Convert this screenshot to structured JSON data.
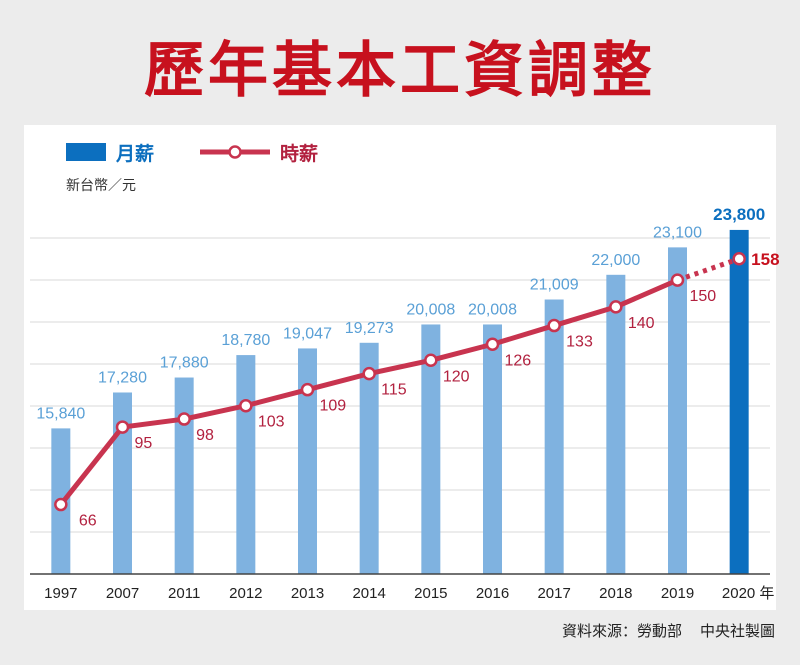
{
  "title": "歷年基本工資調整",
  "chart_data": {
    "type": "bar",
    "categories": [
      "1997",
      "2007",
      "2011",
      "2012",
      "2013",
      "2014",
      "2015",
      "2016",
      "2017",
      "2018",
      "2019",
      "2020"
    ],
    "x_unit": "年",
    "ylabel": "新台幣／元",
    "legend": {
      "bar": "月薪",
      "line": "時薪",
      "placement": "top-left"
    },
    "series": [
      {
        "name": "月薪",
        "type": "bar",
        "values": [
          15840,
          17280,
          17880,
          18780,
          19047,
          19273,
          20008,
          20008,
          21009,
          22000,
          23100,
          23800
        ]
      },
      {
        "name": "時薪",
        "type": "line",
        "values": [
          66,
          95,
          98,
          103,
          109,
          115,
          120,
          126,
          133,
          140,
          150,
          158
        ]
      }
    ],
    "bar_labels": [
      "15,840",
      "17,280",
      "17,880",
      "18,780",
      "19,047",
      "19,273",
      "20,008",
      "20,008",
      "21,009",
      "22,000",
      "23,100",
      "23,800"
    ],
    "line_labels": [
      "66",
      "95",
      "98",
      "103",
      "109",
      "115",
      "120",
      "126",
      "133",
      "140",
      "150",
      "158"
    ],
    "bar_ylim": [
      10000,
      25000
    ],
    "line_ylim": [
      40,
      180
    ],
    "grid": true,
    "highlight_last": true,
    "colors": {
      "bar": "#7fb2e0",
      "bar_highlight": "#0c6fbf",
      "bar_label": "#5aa0d6",
      "bar_label_highlight": "#0c6fbf",
      "line": "#c8344f",
      "line_label": "#b2213f",
      "line_label_highlight": "#c7111e",
      "title": "#c7111e"
    }
  },
  "footer": {
    "source": "資料來源：勞動部",
    "credit": "中央社製圖"
  }
}
